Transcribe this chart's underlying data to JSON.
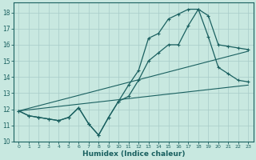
{
  "xlabel": "Humidex (Indice chaleur)",
  "ylabel": "",
  "xlim": [
    -0.5,
    23.5
  ],
  "ylim": [
    10,
    18.6
  ],
  "yticks": [
    10,
    11,
    12,
    13,
    14,
    15,
    16,
    17,
    18
  ],
  "xticks": [
    0,
    1,
    2,
    3,
    4,
    5,
    6,
    7,
    8,
    9,
    10,
    11,
    12,
    13,
    14,
    15,
    16,
    17,
    18,
    19,
    20,
    21,
    22,
    23
  ],
  "bg_color": "#c8e8e0",
  "grid_color": "#a8ccc8",
  "line_color": "#1a6060",
  "line1_x": [
    0,
    1,
    2,
    3,
    4,
    5,
    6,
    7,
    8,
    9,
    10,
    11,
    12,
    13,
    14,
    15,
    16,
    17,
    18,
    19,
    20,
    21,
    22,
    23
  ],
  "line1_y": [
    11.9,
    11.6,
    11.5,
    11.4,
    11.3,
    11.5,
    12.1,
    11.1,
    10.4,
    11.5,
    12.5,
    13.5,
    14.4,
    16.4,
    16.7,
    17.6,
    17.9,
    18.2,
    18.2,
    17.8,
    16.0,
    15.9,
    15.8,
    15.7
  ],
  "line2_x": [
    0,
    1,
    2,
    3,
    4,
    5,
    6,
    7,
    8,
    9,
    10,
    11,
    12,
    13,
    14,
    15,
    16,
    17,
    18,
    19,
    20,
    21,
    22,
    23
  ],
  "line2_y": [
    11.9,
    11.6,
    11.5,
    11.4,
    11.3,
    11.5,
    12.1,
    11.1,
    10.4,
    11.5,
    12.5,
    12.8,
    13.8,
    15.0,
    15.5,
    16.0,
    16.0,
    17.2,
    18.2,
    16.5,
    14.6,
    14.2,
    13.8,
    13.7
  ],
  "line3_x": [
    0,
    23
  ],
  "line3_y": [
    11.9,
    13.5
  ],
  "line4_x": [
    0,
    23
  ],
  "line4_y": [
    11.9,
    15.6
  ]
}
